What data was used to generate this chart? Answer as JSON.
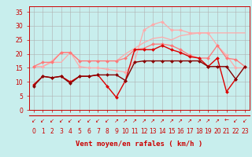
{
  "title": "",
  "xlabel": "Vent moyen/en rafales ( km/h )",
  "background_color": "#c8eeed",
  "grid_color": "#b0b0b0",
  "x_ticks": [
    0,
    1,
    2,
    3,
    4,
    5,
    6,
    7,
    8,
    9,
    10,
    11,
    12,
    13,
    14,
    15,
    16,
    17,
    18,
    19,
    20,
    21,
    22,
    23
  ],
  "ylim": [
    0,
    37
  ],
  "xlim": [
    -0.5,
    23.5
  ],
  "yticks": [
    0,
    5,
    10,
    15,
    20,
    25,
    30,
    35
  ],
  "series": [
    {
      "color": "#ffaaaa",
      "linewidth": 0.9,
      "marker": null,
      "markersize": 0,
      "y": [
        15.5,
        15.5,
        17.0,
        17.0,
        20.5,
        17.5,
        17.5,
        17.5,
        17.5,
        17.5,
        20.0,
        22.0,
        24.0,
        25.5,
        26.0,
        25.0,
        26.5,
        27.0,
        27.5,
        27.5,
        27.5,
        27.5,
        27.5,
        27.5
      ]
    },
    {
      "color": "#ffaaaa",
      "linewidth": 0.9,
      "marker": "D",
      "markersize": 2,
      "y": [
        15.5,
        15.5,
        17.5,
        20.5,
        20.5,
        15.5,
        15.0,
        15.0,
        14.5,
        14.0,
        13.5,
        17.5,
        28.5,
        30.5,
        31.5,
        28.5,
        28.5,
        27.5,
        27.5,
        27.5,
        23.0,
        19.5,
        15.0,
        15.0
      ]
    },
    {
      "color": "#ff7777",
      "linewidth": 0.9,
      "marker": "D",
      "markersize": 2,
      "y": [
        15.5,
        17.0,
        17.0,
        20.5,
        20.5,
        17.5,
        17.5,
        17.5,
        17.5,
        17.5,
        18.5,
        21.5,
        22.0,
        23.5,
        23.5,
        23.0,
        21.5,
        19.5,
        18.5,
        18.5,
        23.0,
        18.5,
        18.0,
        15.5
      ]
    },
    {
      "color": "#dd0000",
      "linewidth": 1.0,
      "marker": "D",
      "markersize": 2,
      "y": [
        9.0,
        12.0,
        11.5,
        12.0,
        10.0,
        12.0,
        12.0,
        12.5,
        8.5,
        4.5,
        10.5,
        21.5,
        21.5,
        21.5,
        23.0,
        21.5,
        20.5,
        19.0,
        18.5,
        15.5,
        18.5,
        6.5,
        11.0,
        null
      ]
    },
    {
      "color": "#880000",
      "linewidth": 1.0,
      "marker": "D",
      "markersize": 2,
      "y": [
        8.5,
        12.0,
        11.5,
        12.0,
        9.5,
        12.0,
        12.0,
        12.5,
        12.5,
        12.5,
        10.5,
        17.0,
        17.5,
        17.5,
        17.5,
        17.5,
        17.5,
        17.5,
        17.5,
        15.5,
        15.5,
        15.5,
        11.0,
        15.5
      ]
    }
  ],
  "wind_dirs": [
    "↙",
    "↙",
    "↙",
    "↙",
    "↙",
    "↙",
    "↙",
    "↙",
    "↙",
    "↗",
    "↗",
    "↗",
    "↗",
    "↗",
    "↗",
    "↗",
    "↗",
    "↗",
    "↗",
    "↗",
    "↗",
    "←",
    "↙",
    "↙"
  ],
  "text_color": "#cc0000",
  "label_fontsize": 6.5,
  "tick_fontsize": 5.5,
  "arrow_fontsize": 5.0
}
